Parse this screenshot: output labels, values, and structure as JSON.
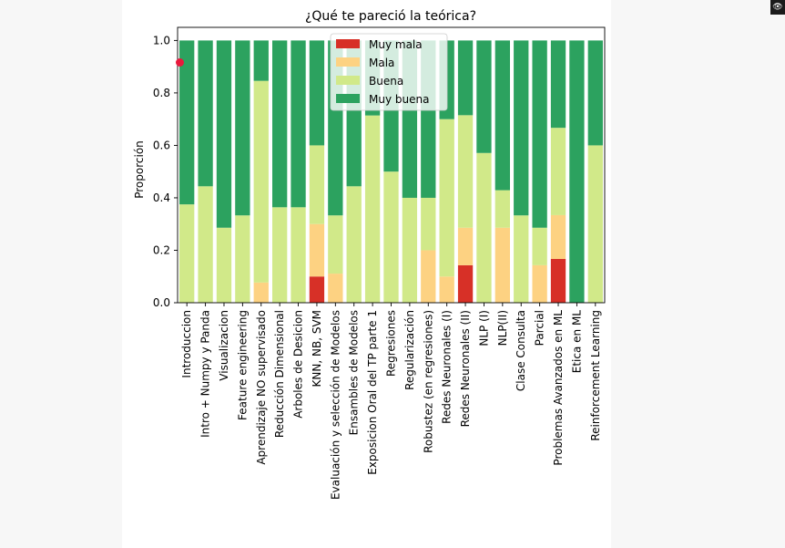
{
  "window": {
    "corner_icon": "eye-icon"
  },
  "marker": {
    "color": "#e8193c"
  },
  "chart_data": {
    "type": "bar",
    "stacked": true,
    "title": "¿Qué te pareció la teórica?",
    "xlabel": "",
    "ylabel": "Proporción",
    "ylim": [
      0,
      1.05
    ],
    "yticks": [
      "0.0",
      "0.2",
      "0.4",
      "0.6",
      "0.8",
      "1.0"
    ],
    "grid": false,
    "legend_position": "top-center",
    "categories": [
      "Introduccion",
      "Intro + Numpy y Panda",
      "Visualizacion",
      "Feature engineering",
      "Aprendizaje NO supervisado",
      "Reducción Dimensional",
      "Arboles de Desicion",
      "KNN, NB, SVM",
      "Evaluación y selección de Modelos",
      "Ensambles de Modelos",
      "Exposicion Oral del TP parte 1",
      "Regresiones",
      "Regularización",
      "Robustez (en regresiones)",
      "Redes Neuronales (I)",
      "Redes Neuronales (II)",
      "NLP (I)",
      "NLP(II)",
      "Clase Consulta",
      "Parcial",
      "Problemas Avanzados en ML",
      "Etica en ML",
      "Reinforcement Learning"
    ],
    "series": [
      {
        "name": "Muy mala",
        "color": "#d73027",
        "values": [
          0,
          0,
          0,
          0,
          0,
          0,
          0,
          0.1,
          0,
          0,
          0,
          0,
          0,
          0,
          0,
          0.143,
          0,
          0,
          0,
          0,
          0.167,
          0,
          0
        ]
      },
      {
        "name": "Mala",
        "color": "#fdd282",
        "values": [
          0,
          0,
          0,
          0,
          0.077,
          0,
          0,
          0.2,
          0.111,
          0,
          0,
          0,
          0,
          0.2,
          0.1,
          0.143,
          0,
          0.286,
          0,
          0.143,
          0.167,
          0,
          0
        ]
      },
      {
        "name": "Buena",
        "color": "#d1e989",
        "values": [
          0.375,
          0.444,
          0.286,
          0.333,
          0.769,
          0.364,
          0.364,
          0.3,
          0.222,
          0.444,
          0.714,
          0.5,
          0.4,
          0.2,
          0.6,
          0.429,
          0.571,
          0.143,
          0.333,
          0.143,
          0.333,
          0,
          0.6
        ]
      },
      {
        "name": "Muy buena",
        "color": "#2ca25f",
        "values": [
          0.625,
          0.556,
          0.714,
          0.667,
          0.154,
          0.636,
          0.636,
          0.4,
          0.667,
          0.556,
          0.286,
          0.5,
          0.6,
          0.6,
          0.3,
          0.285,
          0.429,
          0.571,
          0.667,
          0.714,
          0.333,
          1.0,
          0.4
        ]
      }
    ]
  }
}
